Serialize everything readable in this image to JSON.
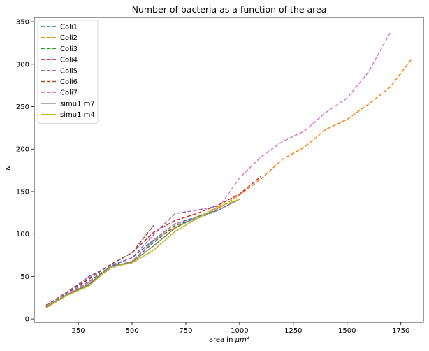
{
  "chart_data": {
    "type": "line",
    "title": "Number of bacteria as a function of the area",
    "xlabel_prefix": "area in ",
    "xlabel_unit_base": "μm",
    "xlabel_unit_exp": "2",
    "ylabel": "N",
    "xlim": [
      45,
      1855
    ],
    "ylim": [
      -4,
      355
    ],
    "xticks": [
      250,
      500,
      750,
      1000,
      1250,
      1500,
      1750
    ],
    "yticks": [
      0,
      50,
      100,
      150,
      200,
      250,
      300,
      350
    ],
    "legend_position": "top-left",
    "grid": false,
    "series": [
      {
        "name": "Coli1",
        "color": "#1f77b4",
        "dash": true,
        "x": [
          100,
          200,
          300,
          400,
          500,
          600,
          700,
          800,
          900
        ],
        "y": [
          15,
          30,
          44,
          62,
          72,
          93,
          112,
          120,
          130
        ]
      },
      {
        "name": "Coli2",
        "color": "#ff7f0e",
        "dash": true,
        "x": [
          100,
          200,
          300,
          400,
          500,
          600,
          700,
          800,
          900,
          1000,
          1100,
          1200,
          1300,
          1400,
          1500,
          1600,
          1700,
          1800
        ],
        "y": [
          15,
          29,
          43,
          61,
          68,
          92,
          108,
          120,
          130,
          146,
          165,
          188,
          202,
          223,
          235,
          253,
          273,
          306
        ]
      },
      {
        "name": "Coli3",
        "color": "#2ca02c",
        "dash": true,
        "x": [
          100,
          200,
          300,
          400,
          500,
          600,
          700,
          800,
          900
        ],
        "y": [
          14,
          28,
          40,
          60,
          68,
          90,
          110,
          118,
          128
        ]
      },
      {
        "name": "Coli4",
        "color": "#d62728",
        "dash": true,
        "x": [
          100,
          200,
          300,
          400,
          500,
          600,
          700,
          800,
          900,
          1000,
          1100
        ],
        "y": [
          16,
          31,
          47,
          64,
          78,
          102,
          116,
          124,
          134,
          147,
          168
        ]
      },
      {
        "name": "Coli5",
        "color": "#9467bd",
        "dash": true,
        "x": [
          100,
          200,
          300,
          400,
          500,
          600,
          700,
          800,
          900
        ],
        "y": [
          16,
          32,
          50,
          63,
          72,
          99,
          124,
          128,
          133
        ]
      },
      {
        "name": "Coli6",
        "color": "#8c564b",
        "dash": true,
        "x": [
          100,
          200,
          300,
          400,
          500,
          600
        ],
        "y": [
          16,
          31,
          48,
          64,
          78,
          110
        ]
      },
      {
        "name": "Coli7",
        "color": "#e377c2",
        "dash": true,
        "x": [
          100,
          200,
          300,
          400,
          500,
          600,
          700,
          800,
          900,
          1000,
          1100,
          1200,
          1300,
          1400,
          1500,
          1600,
          1700
        ],
        "y": [
          15,
          30,
          43,
          60,
          68,
          92,
          112,
          118,
          130,
          166,
          191,
          209,
          221,
          243,
          260,
          291,
          337
        ]
      },
      {
        "name": "simu1 m7",
        "color": "#7f7f7f",
        "dash": false,
        "x": [
          100,
          200,
          300,
          400,
          500,
          600,
          700,
          800,
          900,
          1000
        ],
        "y": [
          14,
          29,
          41,
          62,
          67,
          86,
          107,
          120,
          128,
          141
        ]
      },
      {
        "name": "simu1 m4",
        "color": "#bcbd22",
        "dash": false,
        "x": [
          100,
          200,
          300,
          400,
          500,
          600,
          700,
          800,
          900,
          1000
        ],
        "y": [
          13,
          28,
          39,
          61,
          66,
          81,
          103,
          118,
          132,
          141
        ]
      }
    ]
  }
}
